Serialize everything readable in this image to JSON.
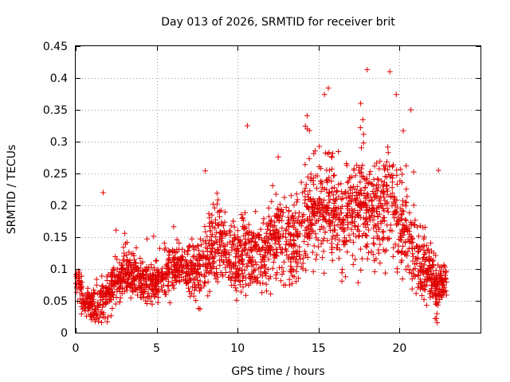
{
  "chart_data": {
    "type": "scatter",
    "title": "Day 013 of 2026, SRMTID for receiver brit",
    "xlabel": "GPS time / hours",
    "ylabel": "SRMTID / TECUs",
    "xlim": [
      0,
      25
    ],
    "ylim": [
      0,
      0.45
    ],
    "xticks": [
      0,
      5,
      10,
      15,
      20
    ],
    "xtick_labels": [
      "0",
      "5",
      "10",
      "15",
      "20"
    ],
    "yticks": [
      0,
      0.05,
      0.1,
      0.15,
      0.2,
      0.25,
      0.3,
      0.35,
      0.4,
      0.45
    ],
    "ytick_labels": [
      "0",
      "0.05",
      "0.1",
      "0.15",
      "0.2",
      "0.25",
      "0.3",
      "0.35",
      "0.4",
      "0.45"
    ],
    "grid": true,
    "marker": "+",
    "marker_color": "#e00000",
    "trend": {
      "hours": [
        0,
        0.3,
        0.6,
        1.0,
        1.5,
        2.0,
        2.5,
        3.0,
        3.5,
        4.0,
        4.5,
        5.0,
        5.5,
        6.0,
        6.5,
        7.0,
        7.5,
        8.0,
        8.5,
        9.0,
        9.5,
        10.0,
        10.5,
        11.0,
        11.5,
        12.0,
        12.5,
        13.0,
        13.5,
        14.0,
        14.5,
        15.0,
        15.5,
        16.0,
        16.5,
        17.0,
        17.5,
        18.0,
        18.5,
        19.0,
        19.5,
        20.0,
        20.5,
        21.0,
        21.5,
        22.0,
        22.3,
        22.6,
        22.9
      ],
      "center": [
        0.085,
        0.06,
        0.045,
        0.04,
        0.045,
        0.06,
        0.08,
        0.095,
        0.09,
        0.08,
        0.075,
        0.08,
        0.09,
        0.1,
        0.1,
        0.095,
        0.095,
        0.11,
        0.13,
        0.14,
        0.12,
        0.11,
        0.13,
        0.12,
        0.125,
        0.14,
        0.15,
        0.15,
        0.14,
        0.16,
        0.18,
        0.19,
        0.2,
        0.19,
        0.17,
        0.2,
        0.2,
        0.19,
        0.18,
        0.2,
        0.2,
        0.17,
        0.15,
        0.12,
        0.1,
        0.09,
        0.06,
        0.08,
        0.075
      ],
      "spread": [
        0.02,
        0.025,
        0.025,
        0.025,
        0.03,
        0.035,
        0.03,
        0.03,
        0.03,
        0.03,
        0.03,
        0.03,
        0.035,
        0.035,
        0.035,
        0.035,
        0.04,
        0.05,
        0.06,
        0.06,
        0.05,
        0.05,
        0.06,
        0.05,
        0.05,
        0.055,
        0.06,
        0.06,
        0.06,
        0.07,
        0.07,
        0.07,
        0.07,
        0.07,
        0.07,
        0.08,
        0.08,
        0.08,
        0.08,
        0.08,
        0.08,
        0.08,
        0.07,
        0.06,
        0.05,
        0.04,
        0.035,
        0.03,
        0.025
      ],
      "samples": 2400
    },
    "notable_points": [
      {
        "x": 1.7,
        "y": 0.22
      },
      {
        "x": 8.0,
        "y": 0.254
      },
      {
        "x": 10.6,
        "y": 0.325
      },
      {
        "x": 15.6,
        "y": 0.384
      },
      {
        "x": 18.0,
        "y": 0.413
      },
      {
        "x": 19.4,
        "y": 0.41
      },
      {
        "x": 19.8,
        "y": 0.374
      },
      {
        "x": 20.7,
        "y": 0.35
      },
      {
        "x": 14.3,
        "y": 0.32
      },
      {
        "x": 17.6,
        "y": 0.36
      },
      {
        "x": 22.4,
        "y": 0.255
      },
      {
        "x": 22.2,
        "y": 0.022
      },
      {
        "x": 1.6,
        "y": 0.016
      }
    ]
  }
}
